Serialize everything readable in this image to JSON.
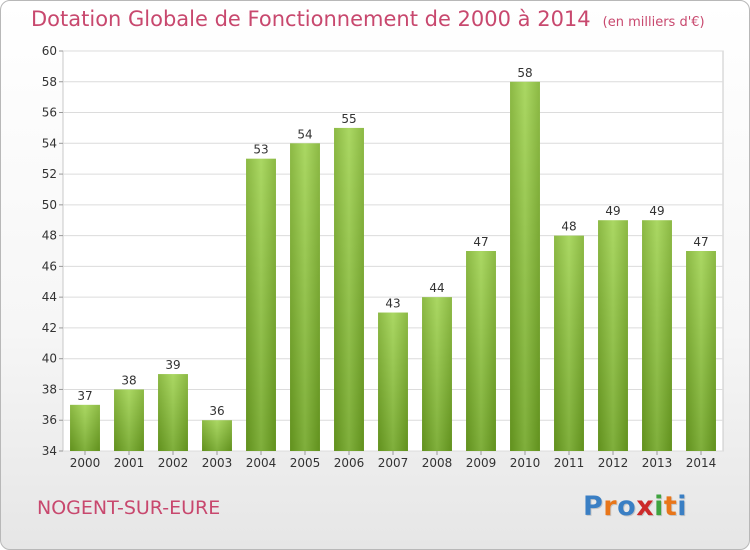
{
  "header": {
    "title": "Dotation Globale de Fonctionnement de 2000 à 2014",
    "subtitle": "(en milliers d'€)"
  },
  "footer": {
    "commune": "NOGENT-SUR-EURE",
    "logo": [
      "P",
      "r",
      "o",
      "x",
      "i",
      "t",
      "i"
    ],
    "logo_colors": [
      "#3a7fc4",
      "#e8761a",
      "#3a7fc4",
      "#cc2a2a",
      "#3fa33f",
      "#e8761a",
      "#3a7fc4"
    ]
  },
  "chart_data": {
    "type": "bar",
    "categories": [
      "2000",
      "2001",
      "2002",
      "2003",
      "2004",
      "2005",
      "2006",
      "2007",
      "2008",
      "2009",
      "2010",
      "2011",
      "2012",
      "2013",
      "2014"
    ],
    "values": [
      37,
      38,
      39,
      36,
      53,
      54,
      55,
      43,
      44,
      47,
      58,
      48,
      49,
      49,
      47
    ],
    "ylim": [
      34,
      60
    ],
    "yticks": [
      34,
      36,
      38,
      40,
      42,
      44,
      46,
      48,
      50,
      52,
      54,
      56,
      58,
      60
    ],
    "grid": true,
    "bar_color_top": "#9fd24e",
    "bar_color_bottom": "#6ea421",
    "title_color": "#c8486e"
  }
}
